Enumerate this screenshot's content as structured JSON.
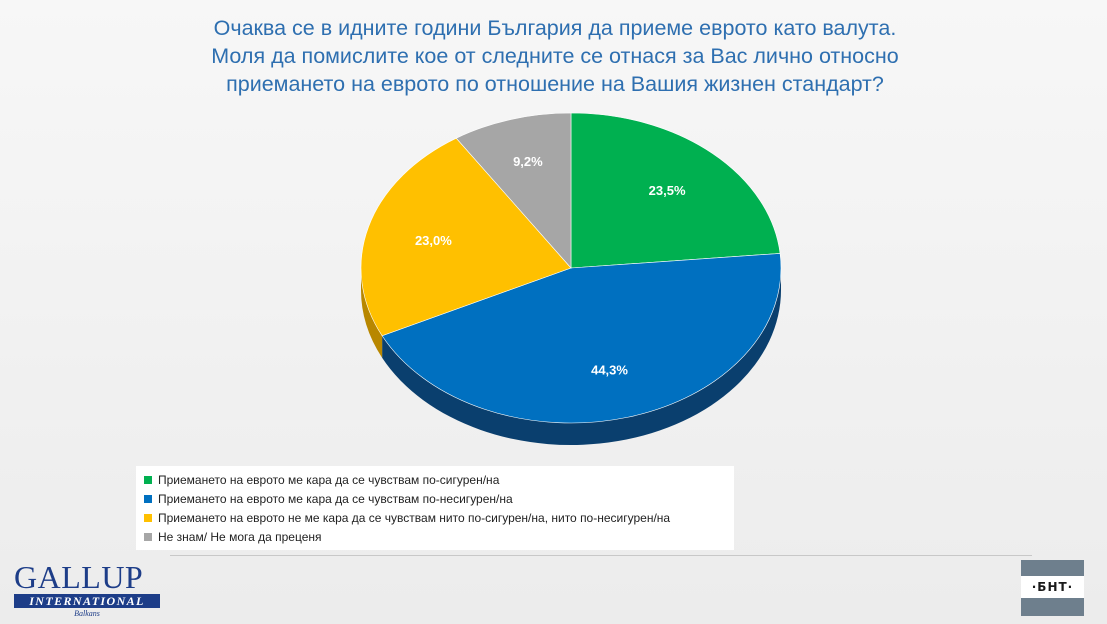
{
  "chart_data": {
    "type": "pie",
    "title_lines": [
      "Очаква се в идните години България да приеме еврото като валута.",
      "Моля да помислите кое от следните се отнася за Вас лично относно",
      "приемането на еврото по отношение на Вашия жизнен стандарт?"
    ],
    "slices": [
      {
        "label": "Приемането на еврото ме кара да се чувствам по-сигурен/на",
        "value": 23.5,
        "value_label": "23,5%",
        "color": "#00b050",
        "shade": "#00863c"
      },
      {
        "label": "Приемането на еврото ме кара да се чувствам по-несигурен/на",
        "value": 44.3,
        "value_label": "44,3%",
        "color": "#0070c0",
        "shade": "#0a3f6e"
      },
      {
        "label": "Приемането на еврото не ме кара да се чувствам нито по-сигурен/на, нито по-несигурен/на",
        "value": 23.0,
        "value_label": "23,0%",
        "color": "#ffc000",
        "shade": "#b88700"
      },
      {
        "label": "Не знам/ Не мога да преценя",
        "value": 9.2,
        "value_label": "9,2%",
        "color": "#a6a6a6",
        "shade": "#7a7a7a"
      }
    ],
    "legend_position": "bottom-left"
  },
  "branding": {
    "gallup_word": "GALLUP",
    "gallup_bar": "INTERNATIONAL",
    "gallup_sub": "Balkans",
    "bnt": "·БНТ·"
  }
}
